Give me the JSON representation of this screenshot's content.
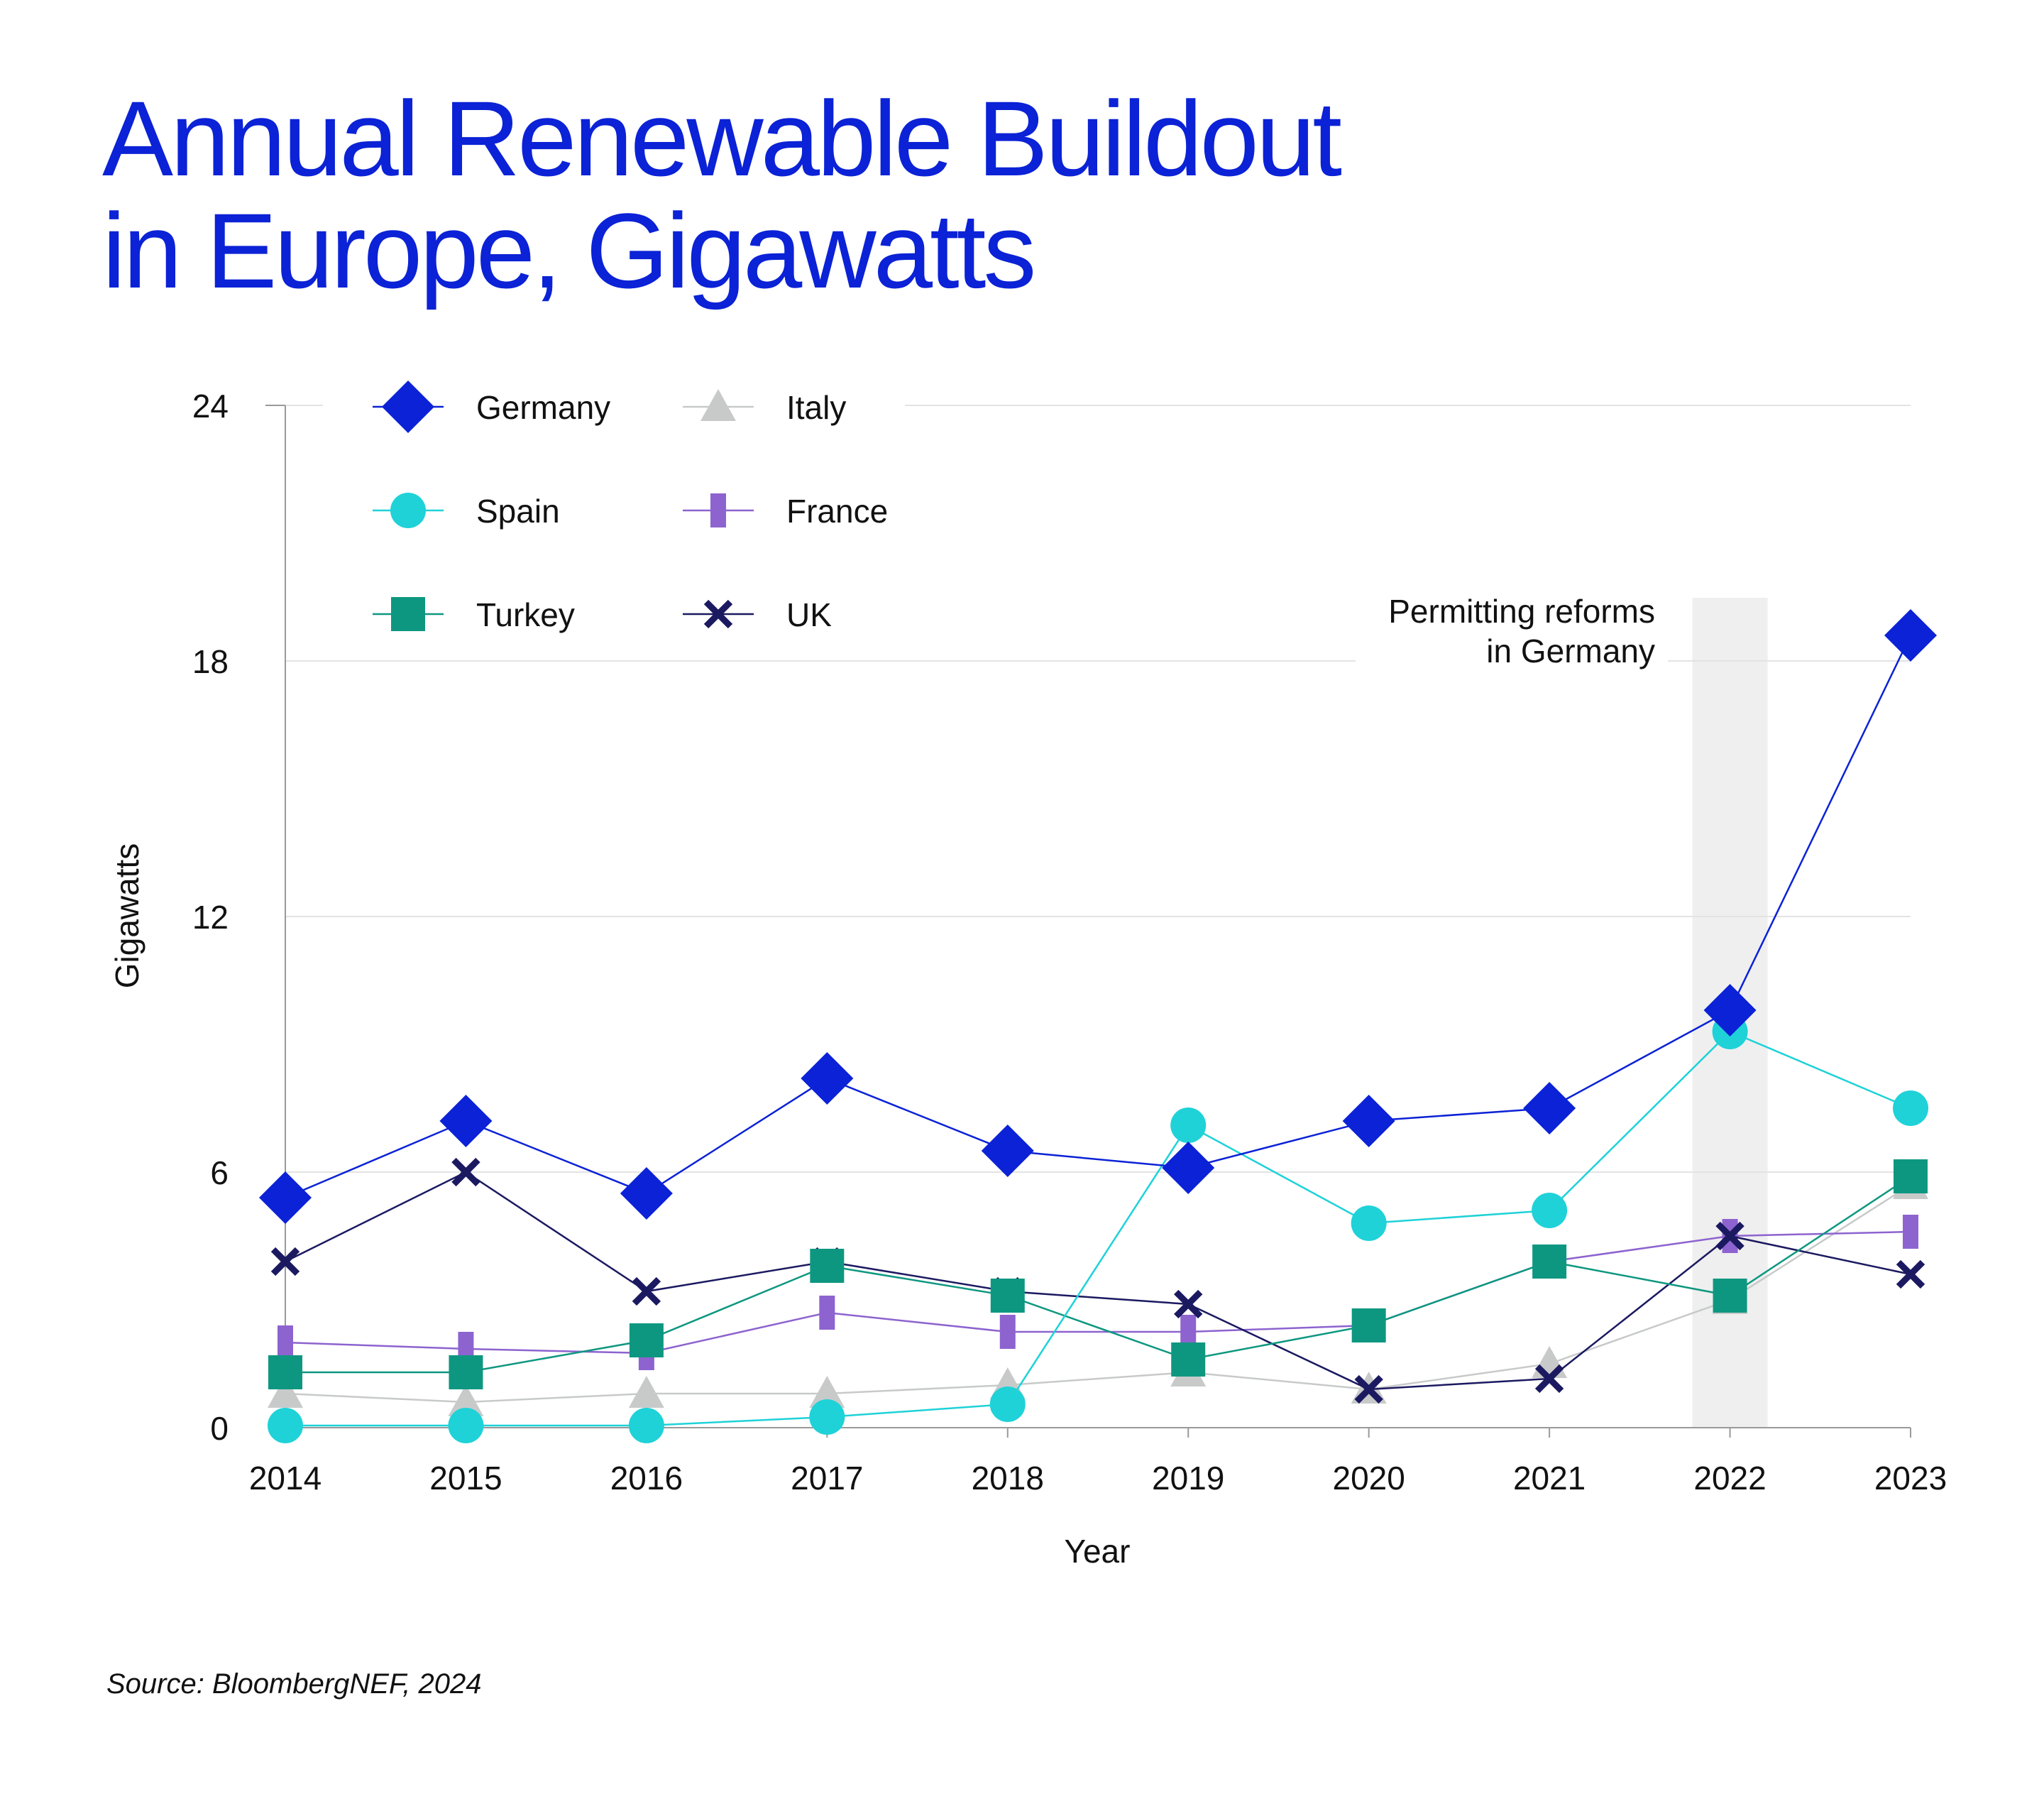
{
  "chart_data": {
    "type": "line",
    "title_lines": [
      "Annual Renewable Buildout",
      "in Europe, Gigawatts"
    ],
    "xlabel": "Year",
    "ylabel": "Gigawatts",
    "ylim": [
      0,
      24
    ],
    "yticks": [
      0,
      6,
      12,
      18,
      24
    ],
    "categories": [
      "2014",
      "2015",
      "2016",
      "2017",
      "2018",
      "2019",
      "2020",
      "2021",
      "2022",
      "2023"
    ],
    "highlight": {
      "category": "2022",
      "label_lines": [
        "Permitting reforms",
        "in Germany"
      ]
    },
    "series": [
      {
        "name": "Italy",
        "color": "#c8caca",
        "marker": "triangle",
        "values": [
          0.8,
          0.6,
          0.8,
          0.8,
          1.0,
          1.3,
          0.9,
          1.5,
          3.0,
          5.7
        ]
      },
      {
        "name": "France",
        "color": "#8d63cf",
        "marker": "bar",
        "values": [
          2.0,
          1.85,
          1.75,
          2.7,
          2.25,
          2.25,
          2.4,
          3.9,
          4.5,
          4.6
        ]
      },
      {
        "name": "UK",
        "color": "#1b1960",
        "marker": "x",
        "values": [
          3.9,
          6.0,
          3.2,
          3.9,
          3.2,
          2.9,
          0.9,
          1.15,
          4.5,
          3.6
        ]
      },
      {
        "name": "Turkey",
        "color": "#0e9780",
        "marker": "square",
        "values": [
          1.3,
          1.3,
          2.05,
          3.8,
          3.1,
          1.6,
          2.4,
          3.9,
          3.1,
          5.9
        ]
      },
      {
        "name": "Spain",
        "color": "#1ed2d8",
        "marker": "circle",
        "values": [
          0.05,
          0.05,
          0.05,
          0.25,
          0.55,
          7.1,
          4.8,
          5.1,
          9.3,
          7.5
        ]
      },
      {
        "name": "Germany",
        "color": "#0b22d6",
        "marker": "diamond",
        "values": [
          5.4,
          7.2,
          5.5,
          8.2,
          6.5,
          6.1,
          7.2,
          7.5,
          9.8,
          18.6
        ]
      }
    ],
    "legend_order": [
      "Germany",
      "Spain",
      "Turkey",
      "Italy",
      "France",
      "UK"
    ],
    "legend_position": "top-left",
    "grid": true
  },
  "source": "Source: BloombergNEF, 2024",
  "colors": {
    "title": "#0b22d6",
    "text": "#111111",
    "grid": "#e3e3e3",
    "axis": "#9a9a9a",
    "highlight": "#efefef"
  }
}
